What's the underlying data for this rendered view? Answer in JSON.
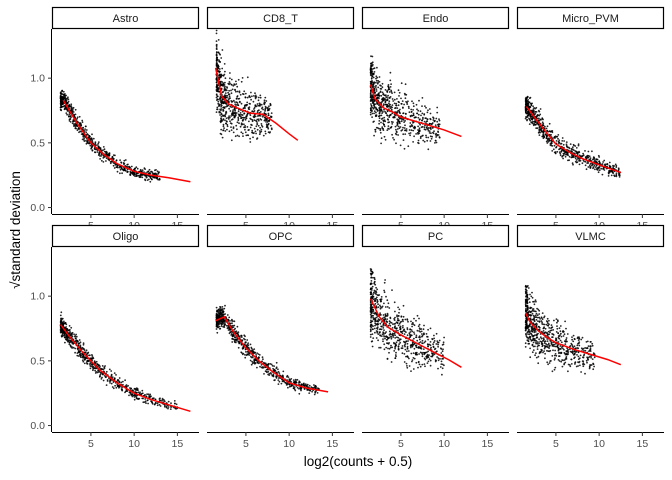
{
  "chart_data": {
    "type": "scatter",
    "facet_layout": "4 columns x 2 rows",
    "xlabel": "log2(counts + 0.5)",
    "ylabel": "√standard deviation",
    "xlim": [
      0.5,
      17.5
    ],
    "ylim": [
      -0.05,
      1.38
    ],
    "xticks": [
      5,
      10,
      15
    ],
    "yticks": [
      0.0,
      0.5,
      1.0
    ],
    "grid": false,
    "point_color": "#000000",
    "trend_color": "#ff0000",
    "panels": [
      {
        "title": "Astro",
        "trend": [
          [
            1.8,
            0.83
          ],
          [
            2.5,
            0.75
          ],
          [
            3.5,
            0.64
          ],
          [
            5,
            0.5
          ],
          [
            6.5,
            0.41
          ],
          [
            8,
            0.34
          ],
          [
            10,
            0.28
          ],
          [
            12,
            0.25
          ],
          [
            14,
            0.23
          ],
          [
            16.5,
            0.2
          ]
        ],
        "cloud": {
          "x": [
            1.5,
            13.0
          ],
          "spread": 0.07
        }
      },
      {
        "title": "CD8_T",
        "trend": [
          [
            1.5,
            1.08
          ],
          [
            2.2,
            0.86
          ],
          [
            3,
            0.8
          ],
          [
            4,
            0.77
          ],
          [
            5.5,
            0.73
          ],
          [
            7,
            0.72
          ],
          [
            8.5,
            0.65
          ],
          [
            10,
            0.57
          ],
          [
            11,
            0.52
          ]
        ],
        "cloud": {
          "x": [
            1.6,
            8.0
          ],
          "spread": 0.26
        }
      },
      {
        "title": "Endo",
        "trend": [
          [
            1.5,
            0.95
          ],
          [
            2,
            0.84
          ],
          [
            3,
            0.77
          ],
          [
            4,
            0.74
          ],
          [
            5,
            0.7
          ],
          [
            6.5,
            0.67
          ],
          [
            8,
            0.64
          ],
          [
            10,
            0.6
          ],
          [
            12,
            0.55
          ]
        ],
        "cloud": {
          "x": [
            1.5,
            9.5
          ],
          "spread": 0.24
        }
      },
      {
        "title": "Micro_PVM",
        "trend": [
          [
            1.6,
            0.78
          ],
          [
            2.5,
            0.7
          ],
          [
            4,
            0.57
          ],
          [
            5,
            0.49
          ],
          [
            6.5,
            0.43
          ],
          [
            8,
            0.38
          ],
          [
            10,
            0.33
          ],
          [
            12.5,
            0.27
          ]
        ],
        "cloud": {
          "x": [
            1.5,
            12.5
          ],
          "spread": 0.09
        }
      },
      {
        "title": "Oligo",
        "trend": [
          [
            1.5,
            0.78
          ],
          [
            2.5,
            0.69
          ],
          [
            4,
            0.57
          ],
          [
            6,
            0.43
          ],
          [
            8,
            0.33
          ],
          [
            10,
            0.25
          ],
          [
            12,
            0.2
          ],
          [
            14,
            0.16
          ],
          [
            16.5,
            0.11
          ]
        ],
        "cloud": {
          "x": [
            1.5,
            15.0
          ],
          "spread": 0.07
        }
      },
      {
        "title": "OPC",
        "trend": [
          [
            1.5,
            0.81
          ],
          [
            2.5,
            0.84
          ],
          [
            3.5,
            0.73
          ],
          [
            5,
            0.6
          ],
          [
            6.5,
            0.5
          ],
          [
            8,
            0.42
          ],
          [
            10,
            0.33
          ],
          [
            12,
            0.29
          ],
          [
            14.5,
            0.26
          ]
        ],
        "cloud": {
          "x": [
            1.6,
            13.5
          ],
          "spread": 0.08
        }
      },
      {
        "title": "PC",
        "trend": [
          [
            1.5,
            0.98
          ],
          [
            2.5,
            0.84
          ],
          [
            3.5,
            0.76
          ],
          [
            5,
            0.7
          ],
          [
            7,
            0.63
          ],
          [
            9,
            0.56
          ],
          [
            10.5,
            0.51
          ],
          [
            12,
            0.45
          ]
        ],
        "cloud": {
          "x": [
            1.5,
            10.0
          ],
          "spread": 0.26
        }
      },
      {
        "title": "VLMC",
        "trend": [
          [
            1.5,
            0.87
          ],
          [
            2,
            0.8
          ],
          [
            3,
            0.73
          ],
          [
            4,
            0.68
          ],
          [
            5,
            0.64
          ],
          [
            7,
            0.59
          ],
          [
            9,
            0.55
          ],
          [
            11,
            0.51
          ],
          [
            12.5,
            0.47
          ]
        ],
        "cloud": {
          "x": [
            1.5,
            9.5
          ],
          "spread": 0.22
        }
      }
    ]
  }
}
